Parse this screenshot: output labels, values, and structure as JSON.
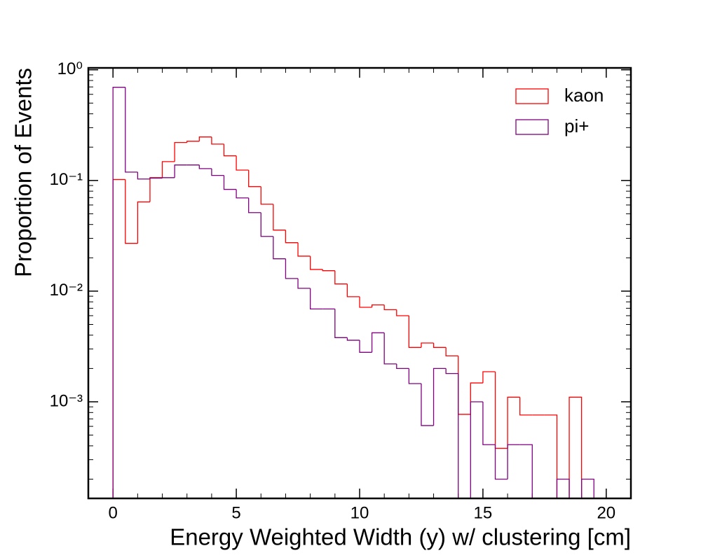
{
  "chart_data": {
    "type": "histogram",
    "xlabel": "Energy Weighted Width (y) w/ clustering [cm]",
    "ylabel": "Proportion of Events",
    "bins": [
      0,
      0.5,
      1,
      1.5,
      2,
      2.5,
      3,
      3.5,
      4,
      4.5,
      5,
      5.5,
      6,
      6.5,
      7,
      7.5,
      8,
      8.5,
      9,
      9.5,
      10,
      10.5,
      11,
      11.5,
      12,
      12.5,
      13,
      13.5,
      14,
      14.5,
      15,
      15.5,
      16,
      16.5,
      17,
      17.5,
      18,
      18.5,
      19,
      19.5,
      20
    ],
    "series": [
      {
        "name": "kaon",
        "color": "#ff0000",
        "values": [
          0.102,
          0.027,
          0.064,
          0.106,
          0.148,
          0.22,
          0.226,
          0.247,
          0.213,
          0.167,
          0.124,
          0.088,
          0.061,
          0.0356,
          0.0274,
          0.0207,
          0.0157,
          0.0153,
          0.0116,
          0.0089,
          0.00714,
          0.0075,
          0.0068,
          0.006,
          0.0031,
          0.0034,
          0.0031,
          0.0026,
          0.00077,
          0.00148,
          0.00187,
          0.00038,
          0.0011,
          0.00076,
          0.00076,
          0.00076,
          null,
          0.0011,
          null,
          null
        ]
      },
      {
        "name": "pi+",
        "color": "#800080",
        "values": [
          0.695,
          0.119,
          0.103,
          0.105,
          0.106,
          0.138,
          0.138,
          0.128,
          0.111,
          0.083,
          0.0695,
          0.0512,
          0.0312,
          0.0196,
          0.013,
          0.0106,
          0.0069,
          0.0069,
          0.0038,
          0.0036,
          0.0028,
          0.0042,
          0.0022,
          0.002,
          0.00146,
          0.00061,
          0.002,
          0.0018,
          null,
          0.001,
          0.00041,
          0.0002,
          0.00041,
          0.00041,
          null,
          null,
          0.0002,
          null,
          0.0002,
          null
        ]
      }
    ],
    "xlim": [
      -1,
      21
    ],
    "xticks": [
      0,
      5,
      10,
      15,
      20
    ],
    "ylim": [
      0.000134,
      1.04
    ],
    "log_y": true,
    "yticks": [
      {
        "value": 0.001,
        "label": "10⁻³"
      },
      {
        "value": 0.01,
        "label": "10⁻²"
      },
      {
        "value": 0.1,
        "label": "10⁻¹"
      },
      {
        "value": 1,
        "label": "10⁰"
      }
    ],
    "legend": "upper right"
  }
}
